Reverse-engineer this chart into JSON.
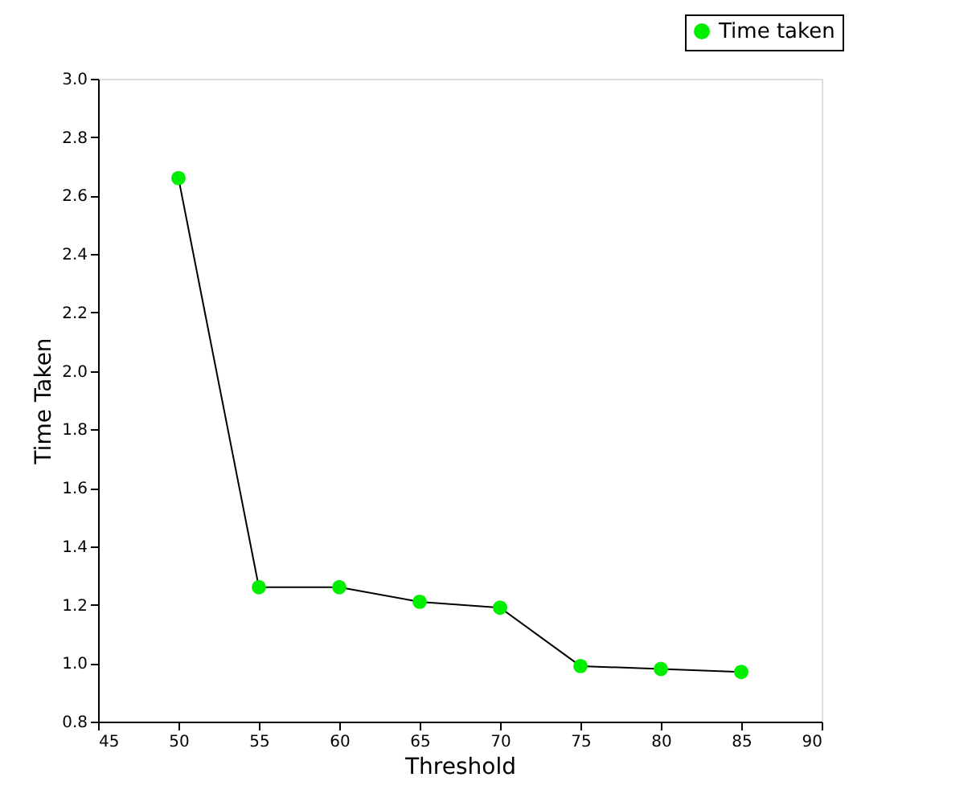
{
  "chart_data": {
    "type": "line",
    "xlabel": "Threshold",
    "ylabel": "Time Taken",
    "x": [
      50,
      55,
      60,
      65,
      70,
      75,
      80,
      85
    ],
    "series": [
      {
        "name": "Time taken",
        "color": "#00ee00",
        "values": [
          2.66,
          1.26,
          1.26,
          1.21,
          1.19,
          0.99,
          0.98,
          0.97
        ]
      }
    ],
    "xlim": [
      45,
      90
    ],
    "xticks": [
      45,
      50,
      55,
      60,
      65,
      70,
      75,
      80,
      85,
      90
    ],
    "ylim": [
      0.8,
      3.0
    ],
    "yticks": [
      {
        "value": 0.8,
        "label": "0.8"
      },
      {
        "value": 1.0,
        "label": "1.0"
      },
      1.2,
      1.4,
      1.6,
      1.8,
      {
        "value": 2.0,
        "label": "2.0"
      },
      2.2,
      2.4,
      2.6,
      2.8,
      {
        "value": 3.0,
        "label": "3.0"
      }
    ],
    "grid": false,
    "legend": "top right",
    "marker": "circle",
    "line_style": "solid"
  }
}
